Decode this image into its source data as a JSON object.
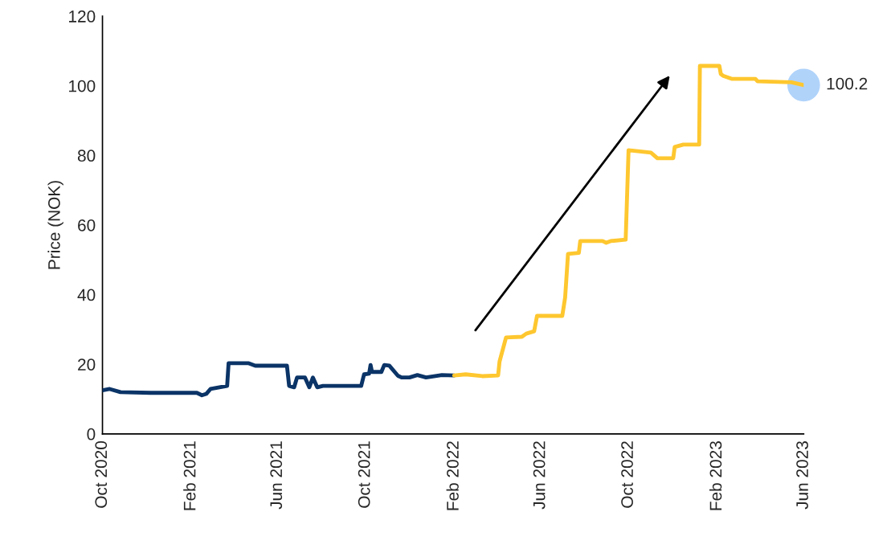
{
  "chart_data": {
    "type": "line",
    "ylabel": "Price (NOK)",
    "xlim": [
      "2020-10-01",
      "2023-06-01"
    ],
    "ylim": [
      0,
      120
    ],
    "yticks": [
      0,
      20,
      40,
      60,
      80,
      100,
      120
    ],
    "xticks": [
      {
        "value": "2020-10-01",
        "label": "Oct 2020"
      },
      {
        "value": "2021-02-01",
        "label": "Feb 2021"
      },
      {
        "value": "2021-06-01",
        "label": "Jun 2021"
      },
      {
        "value": "2021-10-01",
        "label": "Oct 2021"
      },
      {
        "value": "2022-02-01",
        "label": "Feb 2022"
      },
      {
        "value": "2022-06-01",
        "label": "Jun 2022"
      },
      {
        "value": "2022-10-01",
        "label": "Oct 2022"
      },
      {
        "value": "2023-02-01",
        "label": "Feb 2023"
      },
      {
        "value": "2023-06-01",
        "label": "Jun 2023"
      }
    ],
    "grid": false,
    "legend": false,
    "series": [
      {
        "color": "#0b3467",
        "x": [
          "2020-10-01",
          "2020-10-11",
          "2020-10-26",
          "2020-12-07",
          "2021-02-09",
          "2021-02-16",
          "2021-02-22",
          "2021-02-28",
          "2021-03-23",
          "2021-03-25",
          "2021-04-22",
          "2021-05-01",
          "2021-06-14",
          "2021-06-17",
          "2021-06-24",
          "2021-06-28",
          "2021-07-09",
          "2021-07-15",
          "2021-07-20",
          "2021-07-26",
          "2021-08-03",
          "2021-09-25",
          "2021-09-29",
          "2021-10-06",
          "2021-10-08",
          "2021-10-10",
          "2021-10-23",
          "2021-10-27",
          "2021-11-03",
          "2021-11-15",
          "2021-11-20",
          "2021-12-01",
          "2021-12-12",
          "2021-12-24",
          "2022-01-15",
          "2022-02-01"
        ],
        "values": [
          12.5,
          12.9,
          12.0,
          11.8,
          11.8,
          11.1,
          11.5,
          12.9,
          13.8,
          20.3,
          20.3,
          19.6,
          19.6,
          13.8,
          13.4,
          16.2,
          16.2,
          13.4,
          16.2,
          13.4,
          13.8,
          13.8,
          17.1,
          17.3,
          19.8,
          17.8,
          17.8,
          19.8,
          19.6,
          16.7,
          16.2,
          16.2,
          16.9,
          16.2,
          16.9,
          16.8
        ]
      },
      {
        "color": "#fec72f",
        "x": [
          "2022-02-01",
          "2022-02-17",
          "2022-03-12",
          "2022-04-03",
          "2022-04-05",
          "2022-04-14",
          "2022-05-06",
          "2022-05-12",
          "2022-05-23",
          "2022-05-27",
          "2022-07-01",
          "2022-07-05",
          "2022-07-09",
          "2022-07-24",
          "2022-07-26",
          "2022-08-26",
          "2022-08-31",
          "2022-09-06",
          "2022-09-27",
          "2022-10-01",
          "2022-11-01",
          "2022-11-10",
          "2022-12-02",
          "2022-12-04",
          "2022-12-16",
          "2023-01-07",
          "2023-01-08",
          "2023-02-04",
          "2023-02-06",
          "2023-02-09",
          "2023-02-21",
          "2023-03-26",
          "2023-03-29",
          "2023-05-15",
          "2023-06-01"
        ],
        "values": [
          16.8,
          17.1,
          16.6,
          16.8,
          20.8,
          27.7,
          27.9,
          28.8,
          29.5,
          33.9,
          33.9,
          39.2,
          51.7,
          52.0,
          55.4,
          55.4,
          54.9,
          55.4,
          55.8,
          81.5,
          80.8,
          79.2,
          79.2,
          82.4,
          83.1,
          83.1,
          105.7,
          105.7,
          103.4,
          102.9,
          102.0,
          102.0,
          101.3,
          101.0,
          100.2
        ]
      },
      {
        "type": "scatter",
        "color": "#b0d3fa",
        "x": [
          "2023-06-01"
        ],
        "values": [
          100.2
        ],
        "value_labels": [
          "100.2"
        ]
      }
    ]
  }
}
